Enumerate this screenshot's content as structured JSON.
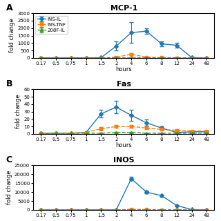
{
  "chart_data": [
    {
      "type": "line",
      "title": "MCP-1",
      "y_label": "fold change",
      "x_label": "hours",
      "annotations": [
        "A"
      ],
      "categories": [
        "0.17",
        "0.5",
        "0.75",
        "1",
        "1.5",
        "2",
        "4",
        "6",
        "8",
        "12",
        "24",
        "48"
      ],
      "series": [
        {
          "name": "INS-IL",
          "marker": "diamond",
          "line_style": "solid",
          "values": [
            1,
            1,
            1,
            5,
            20,
            800,
            1700,
            1800,
            950,
            850,
            30,
            5
          ],
          "errors": [
            0,
            0,
            0,
            5,
            10,
            300,
            700,
            200,
            150,
            150,
            10,
            5
          ]
        },
        {
          "name": "INS-TNF",
          "marker": "square",
          "line_style": "dashed",
          "values": [
            1,
            1,
            1,
            5,
            10,
            50,
            250,
            50,
            20,
            10,
            5,
            3
          ],
          "errors": [
            0,
            0,
            0,
            2,
            5,
            20,
            80,
            20,
            10,
            5,
            2,
            1
          ]
        },
        {
          "name": "208F-IL",
          "marker": "triangle",
          "line_style": "dashed",
          "values": [
            1,
            1,
            1,
            1,
            2,
            3,
            5,
            3,
            2,
            2,
            1,
            1
          ],
          "errors": [
            0,
            0,
            0,
            0,
            1,
            1,
            2,
            1,
            1,
            1,
            0,
            0
          ]
        }
      ],
      "ylim": [
        0,
        3000
      ],
      "yticks": [
        0,
        500,
        1000,
        1500,
        2000,
        2500,
        3000
      ],
      "legend": "upper left"
    },
    {
      "type": "line",
      "title": "Fas",
      "y_label": "fold change",
      "x_label": "hours",
      "annotations": [
        "B"
      ],
      "categories": [
        "0.17",
        "0.5",
        "0.75",
        "1",
        "1.5",
        "2",
        "4",
        "6",
        "8",
        "12",
        "24",
        "48"
      ],
      "series": [
        {
          "name": "INS-IL",
          "marker": "diamond",
          "line_style": "solid",
          "values": [
            1,
            1,
            1,
            2,
            27,
            36,
            25,
            15,
            8,
            2,
            3,
            3
          ],
          "errors": [
            0,
            0,
            0,
            1,
            5,
            8,
            7,
            4,
            2,
            1,
            1,
            1
          ]
        },
        {
          "name": "INS-TNF",
          "marker": "square",
          "line_style": "dashed",
          "values": [
            1,
            1,
            1,
            2,
            7,
            10,
            10,
            8,
            6,
            5,
            4,
            4
          ],
          "errors": [
            0,
            0,
            0,
            1,
            2,
            2,
            2,
            2,
            1,
            1,
            1,
            1
          ]
        },
        {
          "name": "208F-IL",
          "marker": "triangle",
          "line_style": "dashed",
          "values": [
            1,
            1,
            1,
            1,
            1,
            2,
            2,
            1,
            1,
            1,
            1,
            1
          ],
          "errors": [
            0,
            0,
            0,
            0,
            0,
            1,
            1,
            0,
            0,
            0,
            0,
            0
          ]
        }
      ],
      "ylim": [
        0,
        60
      ],
      "yticks": [
        0,
        10,
        20,
        30,
        40,
        50,
        60
      ]
    },
    {
      "type": "line",
      "title": "INOS",
      "y_label": "fold change",
      "annotations": [
        "C"
      ],
      "categories": [
        "0.17",
        "0.5",
        "0.75",
        "1",
        "1.5",
        "2",
        "4",
        "6",
        "8",
        "12",
        "24",
        "48"
      ],
      "series": [
        {
          "name": "INS-IL",
          "marker": "diamond",
          "line_style": "solid",
          "values": [
            1,
            1,
            1,
            1,
            1,
            50,
            17500,
            10000,
            8000,
            2500,
            200,
            50
          ],
          "errors": [
            0,
            0,
            0,
            0,
            0,
            20,
            1000,
            800,
            600,
            300,
            50,
            20
          ]
        },
        {
          "name": "INS-TNF",
          "marker": "square",
          "line_style": "dashed",
          "values": [
            1,
            1,
            1,
            1,
            1,
            30,
            400,
            200,
            100,
            50,
            30,
            10
          ],
          "errors": [
            0,
            0,
            0,
            0,
            0,
            10,
            80,
            50,
            30,
            10,
            10,
            5
          ]
        },
        {
          "name": "208F-IL",
          "marker": "triangle",
          "line_style": "dashed",
          "values": [
            1,
            1,
            1,
            1,
            1,
            5,
            10,
            5,
            3,
            2,
            1,
            1
          ],
          "errors": [
            0,
            0,
            0,
            0,
            0,
            2,
            3,
            2,
            1,
            1,
            0,
            0
          ]
        }
      ],
      "ylim": [
        0,
        25000
      ],
      "yticks": [
        0,
        5000,
        10000,
        15000,
        20000,
        25000
      ]
    }
  ]
}
